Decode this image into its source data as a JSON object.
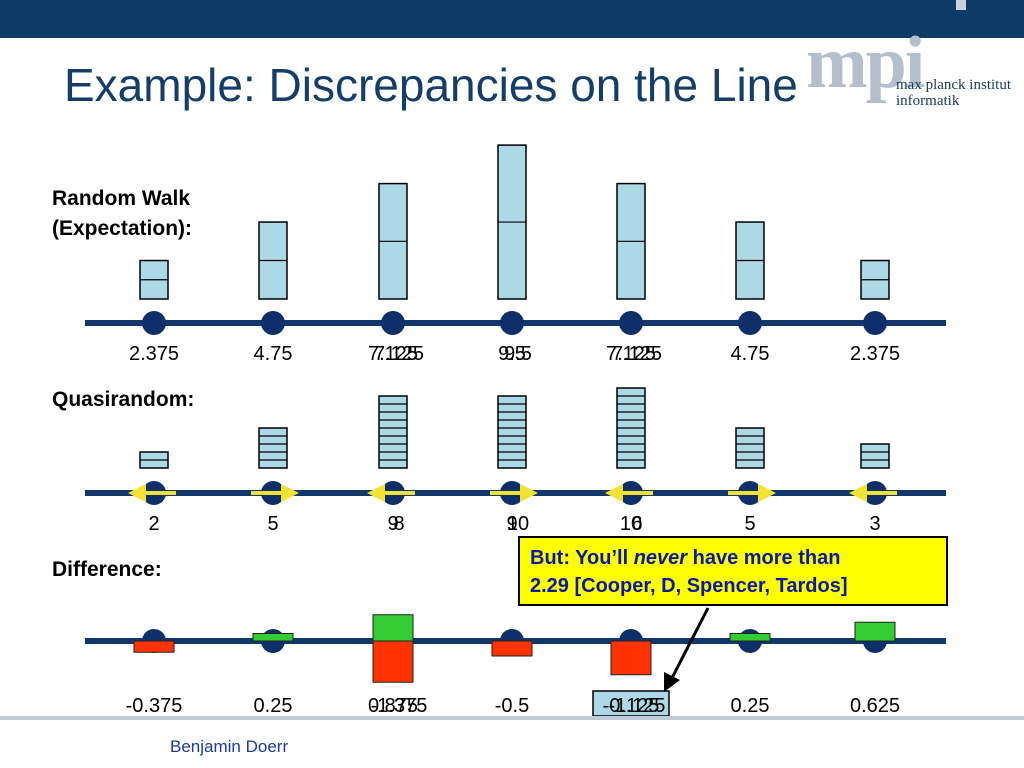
{
  "slide": {
    "title": "Example: Discrepancies on the Line",
    "logo_word": "mpi",
    "logo_line1": "max planck institut",
    "logo_line2": "informatik",
    "footer": "Benjamin Doerr"
  },
  "rows": {
    "random_walk": {
      "label_line1": "Random Walk",
      "label_line2": "(Expectation):",
      "values": [
        "2.375",
        "4.75",
        "7.125",
        "9.5",
        "7.125",
        "4.75",
        "2.375"
      ],
      "overlaid_values": [
        null,
        null,
        "7.125",
        "9.5",
        "7.125",
        null,
        null
      ]
    },
    "quasirandom": {
      "label": "Quasirandom:",
      "values": [
        "2",
        "5",
        "9",
        "9",
        "10",
        "5",
        "3"
      ],
      "overlaid_values": [
        null,
        null,
        "8",
        "10",
        "6",
        null,
        null
      ]
    },
    "difference": {
      "label": "Difference:",
      "values": [
        "-0.375",
        "0.25",
        "0.875",
        "-0.5",
        "-0.125",
        "0.25",
        "0.625"
      ],
      "overlaid_values": [
        null,
        null,
        "-1.375",
        null,
        "-1.125",
        null,
        null
      ]
    }
  },
  "callout": {
    "line1_pre": "But: You’ll ",
    "line1_em": "never",
    "line1_post": " have more than",
    "line2": "2.29 [Cooper, D, Spencer, Tardos]"
  },
  "colors": {
    "top_bar": "#0d3a66",
    "title": "#163d67",
    "axis": "#13376a",
    "node": "#0f2f6b",
    "box_fill": "#add8e6",
    "positive": "#33cc33",
    "negative": "#ff3300",
    "arrow": "#f3e233",
    "callout_bg": "#ffff00",
    "callout_text": "#0a1aa8"
  }
}
